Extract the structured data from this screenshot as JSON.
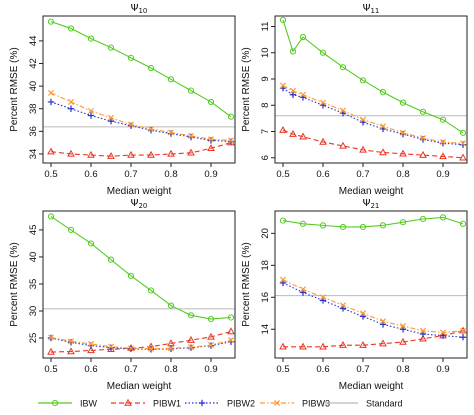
{
  "legend": [
    {
      "key": "ibw",
      "label": "IBW",
      "color": "#55cc22",
      "marker": "circle",
      "dash": "solid"
    },
    {
      "key": "pibw1",
      "label": "PIBW1",
      "color": "#ee3322",
      "marker": "triangle",
      "dash": "dashed"
    },
    {
      "key": "pibw2",
      "label": "PIBW2",
      "color": "#2233cc",
      "marker": "plus",
      "dash": "dotted"
    },
    {
      "key": "pibw3",
      "label": "PIBW3",
      "color": "#ff9933",
      "marker": "cross",
      "dash": "dotdash"
    },
    {
      "key": "standard",
      "label": "Standard",
      "color": "#bbbbbb",
      "marker": "none",
      "dash": "solid"
    }
  ],
  "chart_data": [
    {
      "type": "line",
      "title": "Ψ10",
      "xlabel": "Median weight",
      "ylabel": "Percent RMSE (%)",
      "xlim": [
        0.48,
        0.96
      ],
      "ylim": [
        33.2,
        46.2
      ],
      "xticks": [
        "0.5",
        "0.6",
        "0.7",
        "0.8",
        "0.9"
      ],
      "yticks": [
        34,
        36,
        38,
        40,
        42,
        44
      ],
      "x": [
        0.5,
        0.55,
        0.6,
        0.65,
        0.7,
        0.75,
        0.8,
        0.85,
        0.9,
        0.95
      ],
      "standard": 36.4,
      "series": [
        {
          "name": "IBW",
          "values": [
            45.7,
            45.1,
            44.2,
            43.4,
            42.5,
            41.6,
            40.6,
            39.6,
            38.6,
            37.3
          ]
        },
        {
          "name": "PIBW1",
          "values": [
            34.2,
            34.0,
            33.9,
            33.8,
            33.9,
            33.9,
            34.0,
            34.1,
            34.5,
            35.0
          ]
        },
        {
          "name": "PIBW2",
          "values": [
            38.6,
            38.0,
            37.4,
            36.9,
            36.5,
            36.1,
            35.8,
            35.5,
            35.2,
            35.1
          ]
        },
        {
          "name": "PIBW3",
          "values": [
            39.4,
            38.6,
            37.8,
            37.2,
            36.6,
            36.2,
            35.9,
            35.6,
            35.3,
            35.2
          ]
        }
      ]
    },
    {
      "type": "line",
      "title": "Ψ11",
      "xlabel": "Median weight",
      "ylabel": "Percent RMSE (%)",
      "xlim": [
        0.48,
        0.96
      ],
      "ylim": [
        5.8,
        11.4
      ],
      "xticks": [
        "0.5",
        "0.6",
        "0.7",
        "0.8",
        "0.9"
      ],
      "yticks": [
        6,
        7,
        8,
        9,
        10,
        11
      ],
      "x": [
        0.5,
        0.525,
        0.55,
        0.6,
        0.65,
        0.7,
        0.75,
        0.8,
        0.85,
        0.9,
        0.95
      ],
      "standard": 7.6,
      "series": [
        {
          "name": "IBW",
          "values": [
            11.25,
            10.05,
            10.6,
            10.0,
            9.45,
            8.95,
            8.5,
            8.1,
            7.75,
            7.45,
            6.95
          ]
        },
        {
          "name": "PIBW1",
          "values": [
            7.05,
            6.9,
            6.8,
            6.6,
            6.45,
            6.3,
            6.2,
            6.15,
            6.1,
            6.05,
            6.0
          ]
        },
        {
          "name": "PIBW2",
          "values": [
            8.65,
            8.4,
            8.3,
            8.0,
            7.7,
            7.35,
            7.1,
            6.9,
            6.7,
            6.55,
            6.5
          ]
        },
        {
          "name": "PIBW3",
          "values": [
            8.75,
            8.55,
            8.4,
            8.1,
            7.8,
            7.45,
            7.2,
            6.95,
            6.75,
            6.6,
            6.55
          ]
        }
      ]
    },
    {
      "type": "line",
      "title": "Ψ20",
      "xlabel": "Median weight",
      "ylabel": "Percent RMSE (%)",
      "xlim": [
        0.48,
        0.96
      ],
      "ylim": [
        21.3,
        48.5
      ],
      "xticks": [
        "0.5",
        "0.6",
        "0.7",
        "0.8",
        "0.9"
      ],
      "yticks": [
        25,
        30,
        35,
        40,
        45
      ],
      "x": [
        0.5,
        0.55,
        0.6,
        0.65,
        0.7,
        0.75,
        0.8,
        0.85,
        0.9,
        0.95
      ],
      "standard": 30.4,
      "series": [
        {
          "name": "IBW",
          "values": [
            47.5,
            45.0,
            42.5,
            39.5,
            36.5,
            33.8,
            31.0,
            29.2,
            28.5,
            28.8
          ]
        },
        {
          "name": "PIBW1",
          "values": [
            22.4,
            22.5,
            22.7,
            22.9,
            23.1,
            23.4,
            24.0,
            24.6,
            25.2,
            26.2
          ]
        },
        {
          "name": "PIBW2",
          "values": [
            25.0,
            24.2,
            23.6,
            23.2,
            23.0,
            22.9,
            23.0,
            23.2,
            23.6,
            24.3
          ]
        },
        {
          "name": "PIBW3",
          "values": [
            25.1,
            24.4,
            23.9,
            23.4,
            23.1,
            23.0,
            23.1,
            23.3,
            23.7,
            24.6
          ]
        }
      ]
    },
    {
      "type": "line",
      "title": "Ψ21",
      "xlabel": "Median weight",
      "ylabel": "Percent RMSE (%)",
      "xlim": [
        0.48,
        0.96
      ],
      "ylim": [
        12.2,
        21.4
      ],
      "xticks": [
        "0.5",
        "0.6",
        "0.7",
        "0.8",
        "0.9"
      ],
      "yticks": [
        14,
        16,
        18,
        20
      ],
      "x": [
        0.5,
        0.55,
        0.6,
        0.65,
        0.7,
        0.75,
        0.8,
        0.85,
        0.9,
        0.95
      ],
      "standard": 16.1,
      "series": [
        {
          "name": "IBW",
          "values": [
            20.8,
            20.6,
            20.5,
            20.4,
            20.4,
            20.5,
            20.7,
            20.9,
            21.0,
            20.6
          ]
        },
        {
          "name": "PIBW1",
          "values": [
            12.9,
            12.9,
            12.9,
            13.0,
            13.0,
            13.1,
            13.2,
            13.4,
            13.6,
            13.9
          ]
        },
        {
          "name": "PIBW2",
          "values": [
            16.9,
            16.3,
            15.8,
            15.3,
            14.8,
            14.3,
            14.0,
            13.7,
            13.6,
            13.5
          ]
        },
        {
          "name": "PIBW3",
          "values": [
            17.1,
            16.5,
            16.0,
            15.5,
            15.0,
            14.5,
            14.2,
            13.9,
            13.8,
            13.9
          ]
        }
      ]
    }
  ]
}
